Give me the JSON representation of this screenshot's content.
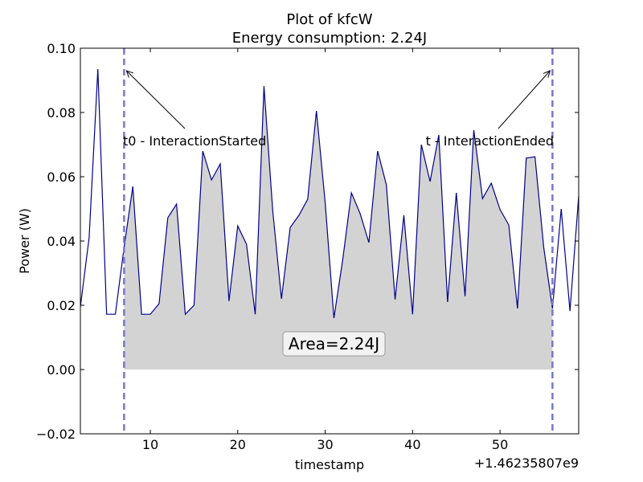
{
  "chart_data": {
    "type": "area",
    "title_lines": [
      "Plot of kfcW",
      "Energy consumption: 2.24J"
    ],
    "xlabel": "timestamp",
    "ylabel": "Power (W)",
    "x_offset_label": "+1.46235807e9",
    "xlim": [
      2,
      59
    ],
    "ylim": [
      -0.02,
      0.1
    ],
    "x_ticks": [
      10,
      20,
      30,
      40,
      50
    ],
    "x_tick_labels": [
      "10",
      "20",
      "30",
      "40",
      "50"
    ],
    "y_ticks": [
      -0.02,
      0.0,
      0.02,
      0.04,
      0.06,
      0.08,
      0.1
    ],
    "y_tick_labels": [
      "−0.02",
      "0.00",
      "0.02",
      "0.04",
      "0.06",
      "0.08",
      "0.10"
    ],
    "grid": false,
    "line_color": "#00008b",
    "fill_color": "#d3d3d3",
    "marker_color": "#7777cc",
    "series": [
      {
        "x": [
          2,
          3,
          4,
          5,
          6,
          7,
          8,
          9,
          10,
          11,
          12,
          13,
          14,
          15,
          16,
          17,
          18,
          19,
          20,
          21,
          22,
          23,
          24,
          25,
          26,
          27,
          28,
          29,
          30,
          31,
          32,
          33,
          34,
          35,
          36,
          37,
          38,
          39,
          40,
          41,
          42,
          43,
          44,
          45,
          46,
          47,
          48,
          49,
          50,
          51,
          52,
          53,
          54,
          55,
          56,
          57,
          58,
          59
        ],
        "values": [
          0.0195,
          0.041,
          0.0935,
          0.0172,
          0.0172,
          0.038,
          0.057,
          0.0172,
          0.0172,
          0.0205,
          0.0472,
          0.0515,
          0.0172,
          0.02,
          0.068,
          0.059,
          0.064,
          0.0213,
          0.0447,
          0.039,
          0.0172,
          0.0882,
          0.0495,
          0.022,
          0.0442,
          0.048,
          0.053,
          0.0805,
          0.052,
          0.016,
          0.034,
          0.055,
          0.0485,
          0.0395,
          0.068,
          0.0575,
          0.0218,
          0.048,
          0.0172,
          0.07,
          0.0585,
          0.073,
          0.021,
          0.055,
          0.0228,
          0.0745,
          0.0532,
          0.058,
          0.0498,
          0.045,
          0.019,
          0.0658,
          0.0662,
          0.038,
          0.019,
          0.05,
          0.0182,
          0.054
        ]
      }
    ],
    "fill_range": [
      7,
      56
    ],
    "markers": [
      {
        "x": 7,
        "label": "t0 - InteractionStarted"
      },
      {
        "x": 56,
        "label": "t - InteractionEnded"
      }
    ],
    "area_label": "Area=2.24J"
  }
}
